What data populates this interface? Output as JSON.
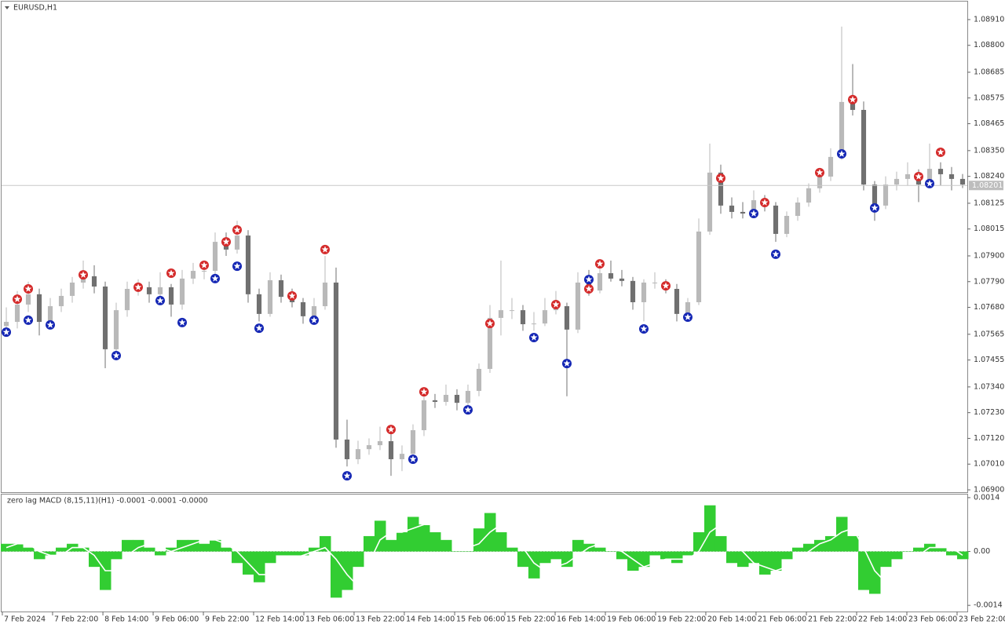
{
  "chart_data": {
    "type": "candlestick",
    "title": "EURUSD,H1",
    "bull_color": "#b9b9b9",
    "bear_color": "#707070",
    "ylim": [
      1.0689,
      1.08987
    ],
    "yticks": [
      {
        "value": 1.0891,
        "label": "1.08910"
      },
      {
        "value": 1.088,
        "label": "1.08800"
      },
      1.08685,
      1.08575,
      1.08465,
      {
        "value": 1.0835,
        "label": "1.08350"
      },
      {
        "value": 1.0824,
        "label": "1.08240"
      },
      1.08125,
      1.08015,
      {
        "value": 1.079,
        "label": "1.07900"
      },
      {
        "value": 1.0779,
        "label": "1.07790"
      },
      {
        "value": 1.0768,
        "label": "1.07680"
      },
      1.07565,
      1.07455,
      {
        "value": 1.0734,
        "label": "1.07340"
      },
      {
        "value": 1.0723,
        "label": "1.07230"
      },
      {
        "value": 1.0712,
        "label": "1.07120"
      },
      {
        "value": 1.0701,
        "label": "1.07010"
      },
      {
        "value": 1.069,
        "label": "1.06900"
      }
    ],
    "current_price": 1.08201,
    "xlim": [
      -0.43,
      87.43
    ],
    "xticks": [
      {
        "value": -0.36,
        "label": "7 Feb 2024"
      },
      {
        "value": 4.21,
        "label": "7 Feb 22:00"
      },
      {
        "value": 8.79,
        "label": "8 Feb 14:00"
      },
      {
        "value": 13.36,
        "label": "9 Feb 06:00"
      },
      {
        "value": 17.93,
        "label": "9 Feb 22:00"
      },
      {
        "value": 22.5,
        "label": "12 Feb 14:00"
      },
      {
        "value": 27.07,
        "label": "13 Feb 06:00"
      },
      {
        "value": 31.64,
        "label": "13 Feb 22:00"
      },
      {
        "value": 36.21,
        "label": "14 Feb 14:00"
      },
      {
        "value": 40.79,
        "label": "15 Feb 06:00"
      },
      {
        "value": 45.36,
        "label": "15 Feb 22:00"
      },
      {
        "value": 49.93,
        "label": "16 Feb 14:00"
      },
      {
        "value": 54.5,
        "label": "19 Feb 06:00"
      },
      {
        "value": 59.07,
        "label": "19 Feb 22:00"
      },
      {
        "value": 63.64,
        "label": "20 Feb 14:00"
      },
      {
        "value": 68.21,
        "label": "21 Feb 06:00"
      },
      {
        "value": 72.79,
        "label": "21 Feb 22:00"
      },
      {
        "value": 77.36,
        "label": "22 Feb 14:00"
      },
      {
        "value": 81.93,
        "label": "23 Feb 06:00"
      },
      {
        "value": 86.5,
        "label": "23 Feb 22:00"
      }
    ],
    "candles": [
      [
        1.076,
        1.0768,
        1.0756,
        1.07618
      ],
      [
        1.07618,
        1.0775,
        1.0759,
        1.07692
      ],
      [
        1.07692,
        1.0779,
        1.0766,
        1.07736
      ],
      [
        1.07736,
        1.0776,
        1.0756,
        1.07618
      ],
      [
        1.07618,
        1.0772,
        1.0759,
        1.07685
      ],
      [
        1.07685,
        1.0776,
        1.0766,
        1.07729
      ],
      [
        1.07729,
        1.0781,
        1.077,
        1.07786
      ],
      [
        1.07786,
        1.0788,
        1.0776,
        1.07813
      ],
      [
        1.07813,
        1.0786,
        1.0774,
        1.07769
      ],
      [
        1.07769,
        1.0779,
        1.0742,
        1.07501
      ],
      [
        1.07501,
        1.077,
        1.0747,
        1.07668
      ],
      [
        1.07668,
        1.0779,
        1.0764,
        1.07759
      ],
      [
        1.07759,
        1.078,
        1.0773,
        1.07766
      ],
      [
        1.07766,
        1.0779,
        1.077,
        1.07736
      ],
      [
        1.07736,
        1.0783,
        1.0771,
        1.07766
      ],
      [
        1.07766,
        1.0778,
        1.0764,
        1.07692
      ],
      [
        1.07692,
        1.0784,
        1.0767,
        1.07803
      ],
      [
        1.07803,
        1.0787,
        1.0778,
        1.07836
      ],
      [
        1.07836,
        1.0788,
        1.078,
        1.07836
      ],
      [
        1.07836,
        1.08,
        1.0782,
        1.0796
      ],
      [
        1.0796,
        1.08,
        1.079,
        1.07927
      ],
      [
        1.07927,
        1.0805,
        1.0791,
        1.07987
      ],
      [
        1.07987,
        1.0801,
        1.077,
        1.07736
      ],
      [
        1.07736,
        1.0776,
        1.0762,
        1.07652
      ],
      [
        1.07652,
        1.0783,
        1.0764,
        1.07796
      ],
      [
        1.07796,
        1.0782,
        1.077,
        1.07725
      ],
      [
        1.07725,
        1.0776,
        1.0768,
        1.07702
      ],
      [
        1.07702,
        1.0772,
        1.0761,
        1.07642
      ],
      [
        1.07642,
        1.0772,
        1.0762,
        1.07685
      ],
      [
        1.07685,
        1.079,
        1.0767,
        1.07786
      ],
      [
        1.07786,
        1.0785,
        1.0708,
        1.07115
      ],
      [
        1.07115,
        1.072,
        1.07,
        1.07031
      ],
      [
        1.07031,
        1.0711,
        1.0701,
        1.07074
      ],
      [
        1.07074,
        1.0712,
        1.0705,
        1.07091
      ],
      [
        1.07091,
        1.0717,
        1.0707,
        1.07108
      ],
      [
        1.07108,
        1.0716,
        1.0696,
        1.07031
      ],
      [
        1.07031,
        1.0709,
        1.0698,
        1.07054
      ],
      [
        1.07054,
        1.0718,
        1.0703,
        1.07155
      ],
      [
        1.07155,
        1.0733,
        1.0713,
        1.07283
      ],
      [
        1.07283,
        1.0731,
        1.0725,
        1.07276
      ],
      [
        1.07276,
        1.0735,
        1.0726,
        1.07306
      ],
      [
        1.07306,
        1.0733,
        1.0724,
        1.07272
      ],
      [
        1.07272,
        1.0735,
        1.0726,
        1.07323
      ],
      [
        1.07323,
        1.0744,
        1.073,
        1.07417
      ],
      [
        1.07417,
        1.0769,
        1.074,
        1.07635
      ],
      [
        1.07635,
        1.0788,
        1.0756,
        1.07668
      ],
      [
        1.07668,
        1.0772,
        1.0763,
        1.07668
      ],
      [
        1.07668,
        1.0769,
        1.0758,
        1.07608
      ],
      [
        1.07608,
        1.0766,
        1.0758,
        1.07611
      ],
      [
        1.07611,
        1.0772,
        1.076,
        1.07668
      ],
      [
        1.07668,
        1.0775,
        1.0765,
        1.07685
      ],
      [
        1.07685,
        1.077,
        1.073,
        1.07585
      ],
      [
        1.07585,
        1.0783,
        1.0757,
        1.07786
      ],
      [
        1.07786,
        1.0784,
        1.0773,
        1.07752
      ],
      [
        1.07752,
        1.0787,
        1.0774,
        1.07826
      ],
      [
        1.07826,
        1.0788,
        1.0779,
        1.07803
      ],
      [
        1.07803,
        1.0784,
        1.0777,
        1.07793
      ],
      [
        1.07793,
        1.0781,
        1.0767,
        1.07702
      ],
      [
        1.07702,
        1.078,
        1.0762,
        1.07786
      ],
      [
        1.07786,
        1.0783,
        1.0776,
        1.07786
      ],
      [
        1.07786,
        1.078,
        1.0774,
        1.07759
      ],
      [
        1.07759,
        1.0778,
        1.0762,
        1.07652
      ],
      [
        1.07652,
        1.0772,
        1.0764,
        1.07702
      ],
      [
        1.07702,
        1.0806,
        1.0769,
        1.08004
      ],
      [
        1.08004,
        1.0838,
        1.0799,
        1.08256
      ],
      [
        1.08256,
        1.0829,
        1.0808,
        1.08115
      ],
      [
        1.08115,
        1.0815,
        1.0806,
        1.08088
      ],
      [
        1.08088,
        1.0813,
        1.0806,
        1.08081
      ],
      [
        1.08081,
        1.0818,
        1.0807,
        1.08138
      ],
      [
        1.08138,
        1.0816,
        1.0809,
        1.08115
      ],
      [
        1.08115,
        1.0813,
        1.0796,
        1.07994
      ],
      [
        1.07994,
        1.0809,
        1.0798,
        1.08071
      ],
      [
        1.08071,
        1.0815,
        1.0805,
        1.08128
      ],
      [
        1.08128,
        1.0821,
        1.0811,
        1.08189
      ],
      [
        1.08189,
        1.0827,
        1.0817,
        1.08239
      ],
      [
        1.08239,
        1.0836,
        1.0822,
        1.08323
      ],
      [
        1.08323,
        1.0888,
        1.0831,
        1.08558
      ],
      [
        1.08558,
        1.0872,
        1.085,
        1.08524
      ],
      [
        1.08524,
        1.0856,
        1.0818,
        1.08205
      ],
      [
        1.08205,
        1.0822,
        1.0805,
        1.08115
      ],
      [
        1.08115,
        1.0824,
        1.081,
        1.08205
      ],
      [
        1.08205,
        1.0826,
        1.0818,
        1.08229
      ],
      [
        1.08229,
        1.083,
        1.082,
        1.08249
      ],
      [
        1.08249,
        1.0827,
        1.0813,
        1.08205
      ],
      [
        1.08205,
        1.0838,
        1.0819,
        1.08272
      ],
      [
        1.08272,
        1.083,
        1.082,
        1.08249
      ],
      [
        1.08249,
        1.0828,
        1.0818,
        1.08229
      ],
      [
        1.08229,
        1.0825,
        1.0819,
        1.08205
      ]
    ],
    "sell_signals": {
      "color": "#d42a2a",
      "index": [
        1,
        2,
        7,
        12,
        15,
        18,
        20,
        21,
        26,
        29,
        35,
        38,
        44,
        50,
        53,
        54,
        60,
        65,
        69,
        74,
        77,
        83,
        85
      ],
      "price": [
        1.07715,
        1.07759,
        1.07819,
        1.07766,
        1.07826,
        1.0786,
        1.0796,
        1.08011,
        1.07729,
        1.07927,
        1.07158,
        1.07319,
        1.07611,
        1.07692,
        1.07759,
        1.07866,
        1.07772,
        1.08232,
        1.08128,
        1.08256,
        1.08568,
        1.08239,
        1.08343
      ]
    },
    "buy_signals": {
      "color": "#1426b4",
      "index": [
        0,
        2,
        4,
        10,
        14,
        16,
        19,
        21,
        23,
        28,
        31,
        37,
        42,
        48,
        51,
        53,
        58,
        62,
        68,
        70,
        76,
        79,
        84
      ],
      "price": [
        1.07574,
        1.07625,
        1.07605,
        1.07474,
        1.07709,
        1.07615,
        1.07803,
        1.07856,
        1.07591,
        1.07625,
        1.0696,
        1.07031,
        1.07242,
        1.07551,
        1.0744,
        1.07799,
        1.07588,
        1.07638,
        1.08081,
        1.07907,
        1.08336,
        1.08105,
        1.08209
      ]
    },
    "indicator": {
      "label": "zero lag MACD (8,15,11)(H1) -0.0001 -0.0001 -0.0000",
      "ylim": [
        -0.00156,
        0.00148
      ],
      "yticks": [
        0.0014,
        {
          "value": 0,
          "label": "0.00"
        },
        -0.0014
      ],
      "histogram": {
        "color": "#32cd32",
        "values": [
          0.0002,
          0.0002,
          0.0001,
          -0.0002,
          -0.0001,
          0.0001,
          0.0002,
          0.0001,
          -0.0004,
          -0.001,
          -0.0002,
          0.0003,
          0.0003,
          0.0001,
          -0.0001,
          0.0001,
          0.0003,
          0.0003,
          0.0002,
          0.0003,
          0.0001,
          -0.0003,
          -0.0006,
          -0.0008,
          -0.0003,
          -0.0001,
          -0.0001,
          -0.0001,
          0.0001,
          0.0004,
          -0.0012,
          -0.001,
          -0.0004,
          0.0004,
          0.0008,
          0.0003,
          0.0005,
          0.0009,
          0.0007,
          0.0005,
          0.0003,
          0,
          0,
          0.0006,
          0.001,
          0.0005,
          0.0001,
          -0.0004,
          -0.0007,
          -0.0003,
          -0.0002,
          -0.0004,
          0.0003,
          0.0002,
          0.0001,
          0,
          -0.0002,
          -0.0005,
          -0.0004,
          -0.0001,
          -0.0002,
          -0.0003,
          -0.0001,
          0.0005,
          0.0012,
          0.0004,
          -0.0003,
          -0.0004,
          -0.0003,
          -0.0006,
          -0.0005,
          -0.0002,
          0.0001,
          0.0002,
          0.0003,
          0.0004,
          0.0009,
          0.0004,
          -0.001,
          -0.0011,
          -0.0004,
          -0.0002,
          0,
          0.0001,
          0.0002,
          0.0001,
          -0.0001,
          -0.0002
        ]
      },
      "signal": {
        "color": "#ffffff",
        "values": [
          0.0001,
          0.0002,
          0.0002,
          0,
          -0.0001,
          -0.0001,
          0.0001,
          0.0001,
          -0.0001,
          -0.0005,
          -0.0005,
          -0.0001,
          0.0001,
          0.0002,
          0.0001,
          0,
          0.0001,
          0.0002,
          0.0003,
          0.0003,
          0.0002,
          0,
          -0.0003,
          -0.0006,
          -0.0006,
          -0.0004,
          -0.0002,
          -0.0001,
          0,
          0.0001,
          -0.0002,
          -0.0006,
          -0.0009,
          -0.0003,
          0.0003,
          0.0005,
          0.0005,
          0.0006,
          0.0007,
          0.0007,
          0.0005,
          0.0003,
          0.0001,
          0.0002,
          0.0005,
          0.0007,
          0.0005,
          0.0001,
          -0.0003,
          -0.0005,
          -0.0004,
          -0.0003,
          -0.0001,
          0.0001,
          0.0002,
          0.0001,
          0,
          -0.0002,
          -0.0004,
          -0.0003,
          -0.0002,
          -0.0002,
          -0.0002,
          0,
          0.0005,
          0.0007,
          0.0004,
          0,
          -0.0003,
          -0.0004,
          -0.0005,
          -0.0004,
          -0.0002,
          0,
          0.0002,
          0.0003,
          0.0005,
          0.0006,
          0.0001,
          -0.0005,
          -0.0008,
          -0.0006,
          -0.0003,
          -0.0001,
          0.0001,
          0.0001,
          0.0001,
          -0.0001
        ]
      }
    }
  }
}
